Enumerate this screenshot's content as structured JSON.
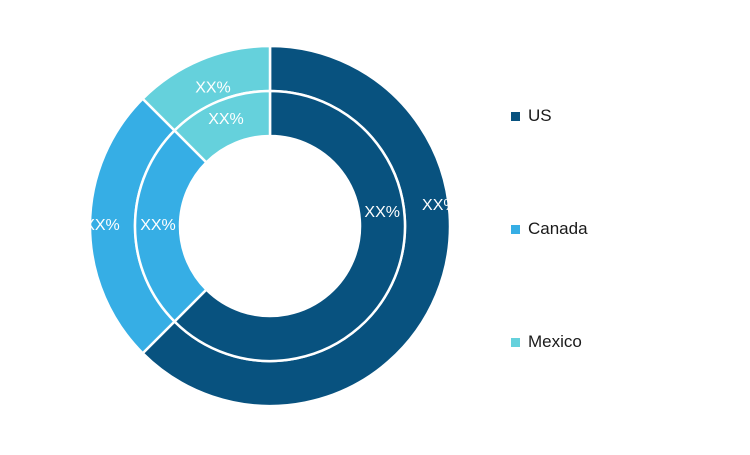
{
  "chart_data": {
    "type": "pie",
    "variant": "nested-donut",
    "categories": [
      "US",
      "Canada",
      "Mexico"
    ],
    "series": [
      {
        "ring": "outer",
        "values": [
          62.5,
          25.0,
          12.5
        ],
        "labels": [
          "XX%",
          "XX%",
          "XX%"
        ]
      },
      {
        "ring": "inner",
        "values": [
          62.5,
          25.0,
          12.5
        ],
        "labels": [
          "XX%",
          "XX%",
          "XX%"
        ]
      }
    ],
    "colors": [
      "#08527f",
      "#36aee5",
      "#65d1dc"
    ],
    "legend": {
      "placement": "right",
      "entries": [
        "US",
        "Canada",
        "Mexico"
      ]
    },
    "start_angle": "12 o'clock",
    "direction": "clockwise",
    "title": "",
    "xlabel": "",
    "ylabel": ""
  }
}
